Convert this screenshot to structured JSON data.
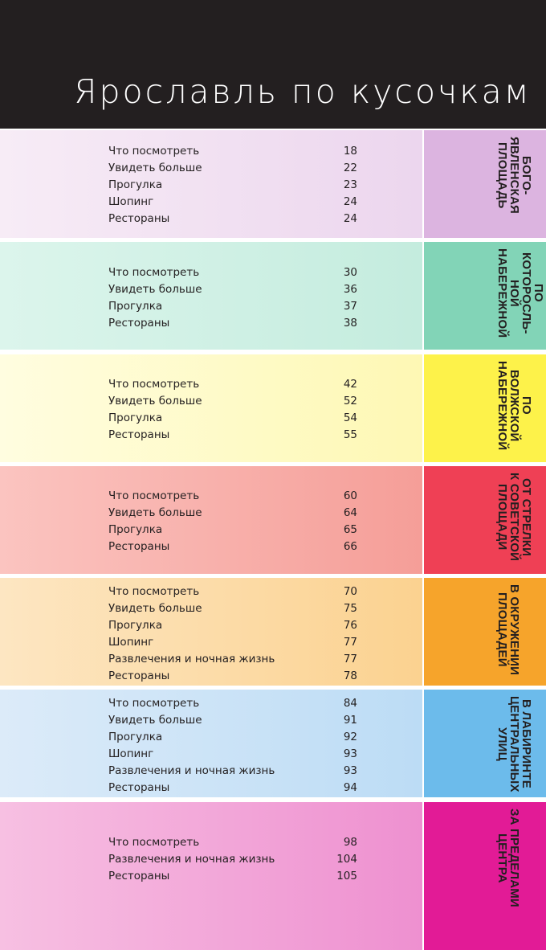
{
  "header": {
    "title": "Ярославль по кусочкам"
  },
  "sections": [
    {
      "tab": "БОГО-\nЯВЛЕНСКАЯ\nПЛОЩАДЬ",
      "tab_color": "#dcb4e0",
      "bg_from": "#f7ecf6",
      "bg_to": "#ecd6ee",
      "items": [
        {
          "label": "Что посмотреть",
          "page": "18"
        },
        {
          "label": "Увидеть больше",
          "page": "22"
        },
        {
          "label": "Прогулка",
          "page": "23"
        },
        {
          "label": "Шопинг",
          "page": "24"
        },
        {
          "label": "Рестораны",
          "page": "24"
        }
      ]
    },
    {
      "tab": "ПО\nКОТОРОСЛЬ-\nНОЙ\nНАБЕРЕЖНОЙ",
      "tab_color": "#82d4b7",
      "bg_from": "#dcf5ec",
      "bg_to": "#c4ecde",
      "items": [
        {
          "label": "Что посмотреть",
          "page": "30"
        },
        {
          "label": "Увидеть больше",
          "page": "36"
        },
        {
          "label": "Прогулка",
          "page": "37"
        },
        {
          "label": "Рестораны",
          "page": "38"
        }
      ]
    },
    {
      "tab": "ПО\nВОЛЖСКОЙ\nНАБЕРЕЖНОЙ",
      "tab_color": "#fdf24a",
      "bg_from": "#fffde0",
      "bg_to": "#fef8b4",
      "items": [
        {
          "label": "Что посмотреть",
          "page": "42"
        },
        {
          "label": "Увидеть больше",
          "page": "52"
        },
        {
          "label": "Прогулка",
          "page": "54"
        },
        {
          "label": "Рестораны",
          "page": "55"
        }
      ]
    },
    {
      "tab": "ОТ СТРЕЛКИ\nК СОВЕТСКОЙ\nПЛОЩАДИ",
      "tab_color": "#ef4055",
      "bg_from": "#fbc4c0",
      "bg_to": "#f59e98",
      "items": [
        {
          "label": "Что посмотреть",
          "page": "60"
        },
        {
          "label": "Увидеть больше",
          "page": "64"
        },
        {
          "label": "Прогулка",
          "page": "65"
        },
        {
          "label": "Рестораны",
          "page": "66"
        }
      ]
    },
    {
      "tab": "В ОКРУЖЕНИИ\nПЛОЩАДЕЙ",
      "tab_color": "#f6a42b",
      "bg_from": "#fde6c2",
      "bg_to": "#fbd290",
      "items": [
        {
          "label": "Что посмотреть",
          "page": "70"
        },
        {
          "label": "Увидеть больше",
          "page": "75"
        },
        {
          "label": "Прогулка",
          "page": "76"
        },
        {
          "label": "Шопинг",
          "page": "77"
        },
        {
          "label": "Развлечения и ночная жизнь",
          "page": "77"
        },
        {
          "label": "Рестораны",
          "page": "78"
        }
      ]
    },
    {
      "tab": "В ЛАБИРИНТЕ\nЦЕНТРАЛЬНЫХ\nУЛИЦ",
      "tab_color": "#6cbbeb",
      "bg_from": "#dcebf9",
      "bg_to": "#bcdcf5",
      "items": [
        {
          "label": "Что посмотреть",
          "page": "84"
        },
        {
          "label": "Увидеть больше",
          "page": "91"
        },
        {
          "label": "Прогулка",
          "page": "92"
        },
        {
          "label": "Шопинг",
          "page": "93"
        },
        {
          "label": "Развлечения и ночная жизнь",
          "page": "93"
        },
        {
          "label": "Рестораны",
          "page": "94"
        }
      ]
    },
    {
      "tab": "ЗА ПРЕДЕЛАМИ\nЦЕНТРА",
      "tab_color": "#e21b96",
      "bg_from": "#f7c0e2",
      "bg_to": "#ee90d0",
      "items": [
        {
          "label": "Что посмотреть",
          "page": "98"
        },
        {
          "label": "Развлечения и ночная жизнь",
          "page": "104"
        },
        {
          "label": "Рестораны",
          "page": "105"
        }
      ]
    }
  ]
}
